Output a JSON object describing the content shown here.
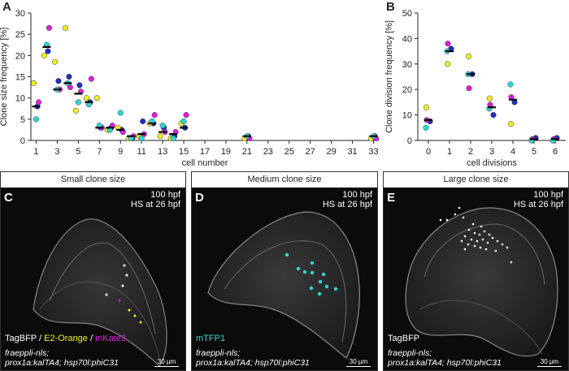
{
  "panel_letters": {
    "a": "A",
    "b": "B",
    "c": "C",
    "d": "D",
    "e": "E"
  },
  "colors": {
    "blue": "#1f2fbf",
    "magenta": "#e01ce0",
    "yellow": "#f0f020",
    "cyan": "#2fd6d6",
    "black": "#000000"
  },
  "chart_data": [
    {
      "type": "scatter",
      "ylabel": "Clone size frequency [%]",
      "xlabel": "cell number",
      "xlim": [
        0.5,
        33.5
      ],
      "ylim": [
        0,
        30
      ],
      "xticks": [
        1,
        3,
        5,
        7,
        9,
        11,
        13,
        15,
        17,
        19,
        21,
        23,
        25,
        27,
        29,
        31,
        33
      ],
      "yticks": [
        0,
        5,
        10,
        15,
        20,
        25,
        30
      ],
      "medians": [
        {
          "x": 1,
          "y": 8
        },
        {
          "x": 2,
          "y": 22
        },
        {
          "x": 3,
          "y": 12
        },
        {
          "x": 4,
          "y": 13.5
        },
        {
          "x": 5,
          "y": 11
        },
        {
          "x": 6,
          "y": 9
        },
        {
          "x": 7,
          "y": 3
        },
        {
          "x": 8,
          "y": 3
        },
        {
          "x": 9,
          "y": 2.5
        },
        {
          "x": 10,
          "y": 1
        },
        {
          "x": 11,
          "y": 1.5
        },
        {
          "x": 12,
          "y": 4
        },
        {
          "x": 13,
          "y": 2
        },
        {
          "x": 14,
          "y": 1.5
        },
        {
          "x": 15,
          "y": 3
        },
        {
          "x": 21,
          "y": 1
        },
        {
          "x": 33,
          "y": 1
        }
      ],
      "series": [
        {
          "name": "blue",
          "color": "#1f2fbf",
          "points": [
            [
              1,
              8
            ],
            [
              2,
              21
            ],
            [
              3,
              14
            ],
            [
              4,
              15
            ],
            [
              5,
              13
            ],
            [
              6,
              9
            ],
            [
              7,
              3
            ],
            [
              8,
              3
            ],
            [
              9,
              2.5
            ],
            [
              10,
              0.5
            ],
            [
              11,
              4.5
            ],
            [
              12,
              4
            ],
            [
              13,
              3
            ],
            [
              14,
              1
            ],
            [
              15,
              3
            ],
            [
              21,
              1
            ],
            [
              33,
              1
            ]
          ]
        },
        {
          "name": "magenta",
          "color": "#e01ce0",
          "points": [
            [
              1,
              9
            ],
            [
              2,
              26.5
            ],
            [
              3,
              12
            ],
            [
              4,
              12.5
            ],
            [
              5,
              11.5
            ],
            [
              6,
              14.5
            ],
            [
              7,
              3
            ],
            [
              8,
              3.5
            ],
            [
              9,
              2
            ],
            [
              10,
              1
            ],
            [
              11,
              1.5
            ],
            [
              12,
              6
            ],
            [
              13,
              2
            ],
            [
              14,
              2
            ],
            [
              15,
              6
            ],
            [
              21,
              0.5
            ],
            [
              33,
              0.5
            ]
          ]
        },
        {
          "name": "yellow",
          "color": "#f0f020",
          "points": [
            [
              1,
              13.5
            ],
            [
              2,
              20
            ],
            [
              3,
              18.5
            ],
            [
              4,
              26.5
            ],
            [
              5,
              7
            ],
            [
              6,
              10
            ],
            [
              7,
              10
            ],
            [
              8,
              2.5
            ],
            [
              9,
              3
            ],
            [
              10,
              0.5
            ],
            [
              11,
              1
            ],
            [
              12,
              4
            ],
            [
              13,
              1
            ],
            [
              14,
              0.5
            ],
            [
              15,
              4
            ],
            [
              21,
              0.5
            ],
            [
              33,
              0.5
            ]
          ]
        },
        {
          "name": "cyan",
          "color": "#2fd6d6",
          "points": [
            [
              1,
              5
            ],
            [
              2,
              22.5
            ],
            [
              3,
              12
            ],
            [
              4,
              13.5
            ],
            [
              5,
              9
            ],
            [
              6,
              8.5
            ],
            [
              7,
              3.5
            ],
            [
              8,
              2.5
            ],
            [
              9,
              6.5
            ],
            [
              10,
              0.5
            ],
            [
              11,
              0.5
            ],
            [
              12,
              4.5
            ],
            [
              13,
              3.5
            ],
            [
              14,
              0.5
            ],
            [
              15,
              4.5
            ],
            [
              21,
              1
            ],
            [
              33,
              1
            ]
          ]
        }
      ]
    },
    {
      "type": "scatter",
      "ylabel": "Clone division frequency [%]",
      "xlabel": "cell divisions",
      "xlim": [
        -0.5,
        6.5
      ],
      "ylim": [
        0,
        50
      ],
      "xticks": [
        0,
        1,
        2,
        3,
        4,
        5,
        6
      ],
      "yticks": [
        0,
        10,
        20,
        30,
        40,
        50
      ],
      "medians": [
        {
          "x": 0,
          "y": 8
        },
        {
          "x": 1,
          "y": 35
        },
        {
          "x": 2,
          "y": 26
        },
        {
          "x": 3,
          "y": 13
        },
        {
          "x": 4,
          "y": 16
        },
        {
          "x": 5,
          "y": 0.5
        },
        {
          "x": 6,
          "y": 0.5
        }
      ],
      "series": [
        {
          "name": "blue",
          "color": "#1f2fbf",
          "points": [
            [
              0,
              7.5
            ],
            [
              1,
              36
            ],
            [
              2,
              26
            ],
            [
              3,
              10
            ],
            [
              4,
              15
            ],
            [
              5,
              1
            ],
            [
              6,
              1
            ]
          ]
        },
        {
          "name": "magenta",
          "color": "#e01ce0",
          "points": [
            [
              0,
              8
            ],
            [
              1,
              38
            ],
            [
              2,
              20.5
            ],
            [
              3,
              14
            ],
            [
              4,
              17
            ],
            [
              5,
              0.5
            ],
            [
              6,
              0.5
            ]
          ]
        },
        {
          "name": "yellow",
          "color": "#f0f020",
          "points": [
            [
              0,
              13
            ],
            [
              1,
              30
            ],
            [
              2,
              33
            ],
            [
              3,
              16.5
            ],
            [
              4,
              6.5
            ],
            [
              5,
              0
            ],
            [
              6,
              0
            ]
          ]
        },
        {
          "name": "cyan",
          "color": "#2fd6d6",
          "points": [
            [
              0,
              5
            ],
            [
              1,
              35
            ],
            [
              2,
              26
            ],
            [
              3,
              12.5
            ],
            [
              4,
              22
            ],
            [
              5,
              0
            ],
            [
              6,
              0
            ]
          ]
        }
      ]
    }
  ],
  "panels": [
    {
      "title": "Small clone size",
      "letter": "C",
      "stamp1": "100 hpf",
      "stamp2": "HS at 26 hpf",
      "legend": [
        {
          "text": "TagBFP",
          "color": "#ffffff"
        },
        {
          "text": " / ",
          "color": "#ffffff"
        },
        {
          "text": "E2-Orange",
          "color": "#f0f020"
        },
        {
          "text": " / ",
          "color": "#ffffff"
        },
        {
          "text": "mKate2",
          "color": "#e01ce0"
        }
      ],
      "geno1": "fraeppli-nls;",
      "geno2": "prox1a:kalTA4; hsp70l:phiC31",
      "scale": "30 µm"
    },
    {
      "title": "Medium clone size",
      "letter": "D",
      "stamp1": "100 hpf",
      "stamp2": "HS at 26 hpf",
      "legend": [
        {
          "text": "mTFP1",
          "color": "#2fd6d6"
        }
      ],
      "geno1": "fraeppli-nls;",
      "geno2": "prox1a:kalTA4; hsp70l:phiC31",
      "scale": "30 µm"
    },
    {
      "title": "Large clone size",
      "letter": "E",
      "stamp1": "100 hpf",
      "stamp2": "HS at 26 hpf",
      "legend": [
        {
          "text": "TagBFP",
          "color": "#ffffff"
        }
      ],
      "geno1": "fraeppli-nls;",
      "geno2": "prox1a:kalTA4; hsp70l:phiC31",
      "scale": "30 µm"
    }
  ]
}
